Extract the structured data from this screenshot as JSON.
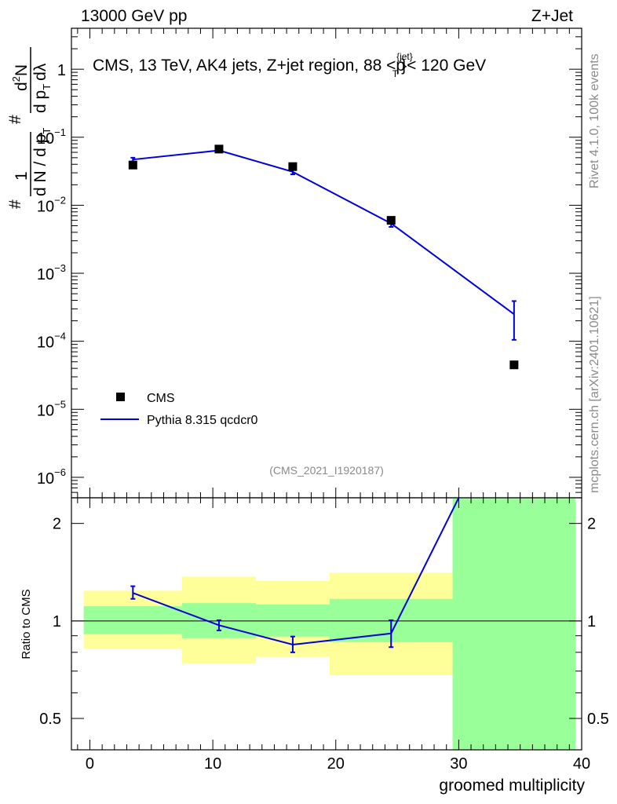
{
  "header": {
    "left": "13000 GeV pp",
    "right": "Z+Jet"
  },
  "side": {
    "rivet": "Rivet 4.1.0,  100k events",
    "mcplots": "mcplots.cern.ch [arXiv:2401.10621]"
  },
  "chart_data": [
    {
      "type": "scatter",
      "panel": "main",
      "title_main": "CMS, 13 TeV, AK4 jets, Z+jet region, 88 <p",
      "title_sub": "T",
      "title_sup": "{jet}",
      "title_tail": "}< 120 GeV",
      "analysis": "(CMS_2021_I1920187)",
      "ylabel": {
        "frac_num": "1",
        "frac_den": "d N / d p",
        "frac_den_sub": "T",
        "frac_hash": "#",
        "frac_hash2": "#",
        "deriv_num": "d",
        "deriv_num_sup": "2",
        "deriv_num_tail": "N",
        "deriv_den": "d p",
        "deriv_den_sub": "T",
        "deriv_den_tail": "dλ"
      },
      "yscale": "log",
      "ylim": [
        5e-07,
        4
      ],
      "xlim": [
        -1.5,
        40
      ],
      "ytick_labels": [
        {
          "value": 1,
          "base": "1",
          "exp": ""
        },
        {
          "value": 0.1,
          "base": "10",
          "exp": "−1"
        },
        {
          "value": 0.01,
          "base": "10",
          "exp": "−2"
        },
        {
          "value": 0.001,
          "base": "10",
          "exp": "−3"
        },
        {
          "value": 0.0001,
          "base": "10",
          "exp": "−4"
        },
        {
          "value": 1e-05,
          "base": "10",
          "exp": "−5"
        },
        {
          "value": 1e-06,
          "base": "10",
          "exp": "−6"
        }
      ],
      "series": [
        {
          "name": "CMS",
          "style": "marker",
          "color": "#000000",
          "x": [
            3.5,
            10.5,
            16.5,
            24.5,
            34.5
          ],
          "y": [
            0.039,
            0.067,
            0.037,
            0.006,
            4.5e-05
          ]
        },
        {
          "name": "Pythia 8.315 qcdcr0",
          "style": "line",
          "color": "#0000dd",
          "x": [
            3.5,
            10.5,
            16.5,
            24.5,
            34.5
          ],
          "y": [
            0.047,
            0.064,
            0.031,
            0.0054,
            0.00025
          ],
          "yerr_low": [
            0.044,
            0.061,
            0.0285,
            0.0048,
            0.000105
          ],
          "yerr_high": [
            0.05,
            0.067,
            0.0335,
            0.006,
            0.00039
          ]
        }
      ],
      "legend": [
        {
          "label": "CMS",
          "marker": "square"
        },
        {
          "label": "Pythia 8.315 qcdcr0",
          "marker": "line"
        }
      ],
      "legend_position": "lower-left"
    },
    {
      "type": "scatter",
      "panel": "ratio",
      "ylabel": "Ratio to CMS",
      "xlabel": "groomed multiplicity",
      "yscale": "log",
      "ylim": [
        0.4,
        2.4
      ],
      "xlim": [
        -1.5,
        40
      ],
      "ytick_labels": [
        {
          "value": 2,
          "label": "2"
        },
        {
          "value": 1,
          "label": "1"
        },
        {
          "value": 0.5,
          "label": "0.5"
        }
      ],
      "xtick_labels": [
        {
          "value": 0,
          "label": "0"
        },
        {
          "value": 10,
          "label": "10"
        },
        {
          "value": 20,
          "label": "20"
        },
        {
          "value": 30,
          "label": "30"
        },
        {
          "value": 40,
          "label": "40"
        }
      ],
      "bands": [
        {
          "x0": -0.5,
          "x1": 7.5,
          "y0": 0.82,
          "y1": 1.24,
          "color": "#ffff99"
        },
        {
          "x0": 7.5,
          "x1": 13.5,
          "y0": 0.74,
          "y1": 1.37,
          "color": "#ffff99"
        },
        {
          "x0": 13.5,
          "x1": 19.5,
          "y0": 0.775,
          "y1": 1.33,
          "color": "#ffff99"
        },
        {
          "x0": 19.5,
          "x1": 29.5,
          "y0": 0.68,
          "y1": 1.41,
          "color": "#ffff99"
        },
        {
          "x0": -0.5,
          "x1": 7.5,
          "y0": 0.91,
          "y1": 1.11,
          "color": "#99ff99"
        },
        {
          "x0": 7.5,
          "x1": 13.5,
          "y0": 0.885,
          "y1": 1.135,
          "color": "#99ff99"
        },
        {
          "x0": 13.5,
          "x1": 19.5,
          "y0": 0.895,
          "y1": 1.125,
          "color": "#99ff99"
        },
        {
          "x0": 19.5,
          "x1": 29.5,
          "y0": 0.86,
          "y1": 1.17,
          "color": "#99ff99"
        },
        {
          "x0": 29.5,
          "x1": 39.5,
          "y0": 0.4,
          "y1": 2.4,
          "color": "#99ff99"
        }
      ],
      "series": [
        {
          "name": "Pythia 8.315 qcdcr0 / CMS",
          "color": "#0000dd",
          "x": [
            3.5,
            10.5,
            16.5,
            24.5,
            30.0
          ],
          "y": [
            1.22,
            0.97,
            0.845,
            0.915,
            2.4
          ],
          "yerr_low": [
            1.17,
            0.935,
            0.8,
            0.83,
            null
          ],
          "yerr_high": [
            1.28,
            1.005,
            0.895,
            1.005,
            null
          ]
        }
      ],
      "reference_line": 1
    }
  ]
}
